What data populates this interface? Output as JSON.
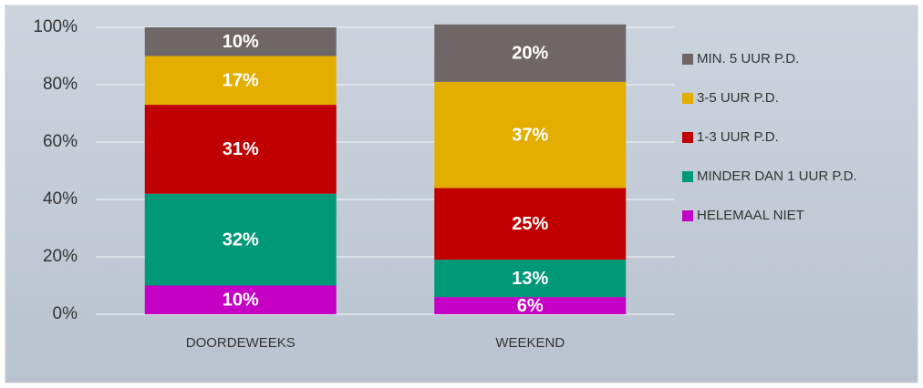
{
  "chart_data": {
    "type": "stacked_bar",
    "categories": [
      "DOORDEWEEKS",
      "WEEKEND"
    ],
    "series": [
      {
        "name": "HELEMAAL NIET",
        "color": "#c400c4",
        "values": [
          10,
          6
        ],
        "value_labels": [
          "10%",
          "6%"
        ]
      },
      {
        "name": "MINDER DAN 1 UUR P.D.",
        "color": "#009978",
        "values": [
          32,
          13
        ],
        "value_labels": [
          "32%",
          "13%"
        ]
      },
      {
        "name": "1-3 UUR P.D.",
        "color": "#c00000",
        "values": [
          31,
          25
        ],
        "value_labels": [
          "31%",
          "25%"
        ]
      },
      {
        "name": "3-5 UUR P.D.",
        "color": "#e3ae00",
        "values": [
          17,
          37
        ],
        "value_labels": [
          "17%",
          "37%"
        ]
      },
      {
        "name": "MIN. 5 UUR P.D.",
        "color": "#6e6766",
        "values": [
          10,
          20
        ],
        "value_labels": [
          "10%",
          "20%"
        ]
      }
    ],
    "ylim": [
      0,
      100
    ],
    "yticks": [
      {
        "value": 0,
        "label": "0%"
      },
      {
        "value": 20,
        "label": "20%"
      },
      {
        "value": 40,
        "label": "40%"
      },
      {
        "value": 60,
        "label": "60%"
      },
      {
        "value": 80,
        "label": "80%"
      },
      {
        "value": 100,
        "label": "100%"
      }
    ],
    "grid": true,
    "legend": "right"
  }
}
